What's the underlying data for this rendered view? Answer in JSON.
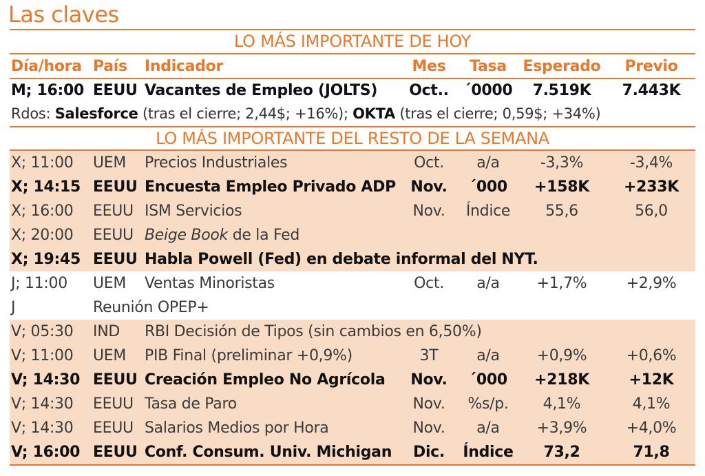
{
  "title": "Las claves",
  "section_today": "LO MÁS IMPORTANTE DE HOY",
  "section_week": "LO MÁS IMPORTANTE DEL RESTO DE LA SEMANA",
  "columns": {
    "time": "Día/hora",
    "country": "País",
    "indicator": "Indicador",
    "month": "Mes",
    "rate": "Tasa",
    "expected": "Esperado",
    "previous": "Previo"
  },
  "today": {
    "time": "M; 16:00",
    "country": "EEUU",
    "indicator": "Vacantes de Empleo (JOLTS)",
    "month": "Oct..",
    "rate": "´0000",
    "expected": "7.519K",
    "previous": "7.443K"
  },
  "results": {
    "prefix": "Rdos:",
    "company1": "Salesforce",
    "detail1": "(tras el cierre; 2,44$; +16%);",
    "company2": "OKTA",
    "detail2": "(tras el cierre; 0,59$; +34%)"
  },
  "week": [
    {
      "time": "X; 11:00",
      "country": "UEM",
      "indicator": "Precios Industriales",
      "month": "Oct.",
      "rate": "a/a",
      "expected": "-3,3%",
      "previous": "-3,4%"
    },
    {
      "time": "X; 14:15",
      "country": "EEUU",
      "indicator": "Encuesta  Empleo  Privado  ADP",
      "month": "Nov.",
      "rate": "´000",
      "expected": "+158K",
      "previous": "+233K"
    },
    {
      "time": "X; 16:00",
      "country": "EEUU",
      "indicator": "ISM Servicios",
      "month": "Nov.",
      "rate": "Índice",
      "expected": "55,6",
      "previous": "56,0"
    },
    {
      "time": "X; 20:00",
      "country": "EEUU",
      "indicator_italic": "Beige Book",
      "indicator_rest": " de la Fed"
    },
    {
      "time": "X; 19:45",
      "country": "EEUU",
      "indicator": "Habla Powell (Fed) en debate informal del NYT."
    },
    {
      "time": "J; 11:00",
      "country": "UEM",
      "indicator": "Ventas Minoristas",
      "month": "Oct.",
      "rate": "a/a",
      "expected": "+1,7%",
      "previous": "+2,9%"
    },
    {
      "time": "J",
      "country": "Reunión OPEP+"
    },
    {
      "time": "V; 05:30",
      "country": "IND",
      "indicator": "RBI Decisión de Tipos (sin cambios en 6,50%)"
    },
    {
      "time": "V; 11:00",
      "country": "UEM",
      "indicator": "PIB Final (preliminar +0,9%)",
      "month": "3T",
      "rate": "a/a",
      "expected": "+0,9%",
      "previous": "+0,6%"
    },
    {
      "time": "V; 14:30",
      "country": "EEUU",
      "indicator": "Creación Empleo No Agrícola",
      "month": "Nov.",
      "rate": "´000",
      "expected": "+218K",
      "previous": "+12K"
    },
    {
      "time": "V; 14:30",
      "country": "EEUU",
      "indicator": "Tasa de Paro",
      "month": "Nov.",
      "rate": "%s/p.",
      "expected": "4,1%",
      "previous": "4,1%"
    },
    {
      "time": "V; 14:30",
      "country": "EEUU",
      "indicator": "Salarios Medios por Hora",
      "month": "Nov.",
      "rate": "a/a",
      "expected": "+3,9%",
      "previous": "+4,0%"
    },
    {
      "time": "V; 16:00",
      "country": "EEUU",
      "indicator": "Conf. Consum. Univ. Michigan",
      "month": "Dic.",
      "rate": "Índice",
      "expected": "73,2",
      "previous": "71,8"
    }
  ]
}
